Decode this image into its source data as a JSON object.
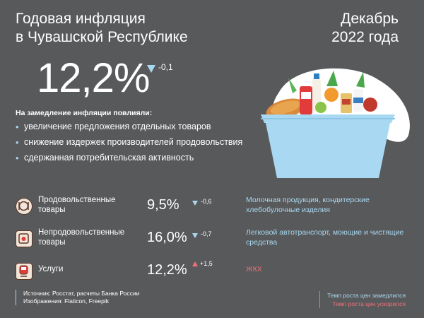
{
  "header": {
    "title_line1": "Годовая инфляция",
    "title_line2": "в Чувашской Республике",
    "date_line1": "Декабрь",
    "date_line2": "2022 года"
  },
  "headline": {
    "value": "12,2%",
    "delta": "-0,1"
  },
  "factors": {
    "heading": "На замедление инфляции повлияли:",
    "items": [
      "увеличение предложения отдельных товаров",
      "снижение издержек производителей продовольствия",
      "сдержанная потребительская активность"
    ]
  },
  "categories": [
    {
      "icon": "food-plate-icon",
      "label_line1": "Продовольственные",
      "label_line2": "товары",
      "value": "9,5%",
      "delta": "-0,6",
      "direction": "down",
      "note": "Молочная продукция, кондитерские хлебобулочные изделия",
      "note_status": "slowed"
    },
    {
      "icon": "household-goods-icon",
      "label_line1": "Непродовольственные",
      "label_line2": "товары",
      "value": "16,0%",
      "delta": "-0,7",
      "direction": "down",
      "note": "Легковой автотранспорт, моющие и чистящие средства",
      "note_status": "slowed"
    },
    {
      "icon": "train-icon",
      "label_line1": "Услуги",
      "label_line2": "",
      "value": "12,2%",
      "delta": "+1,5",
      "direction": "up",
      "note": "ЖКХ",
      "note_status": "accelerated"
    }
  ],
  "footer": {
    "source_line1": "Источник: Росстат, расчеты Банка России",
    "source_line2": "Изображения: Flaticon, Freepik",
    "legend_slowed": "Темп роста цен замедлился",
    "legend_accelerated": "Темп роста цен ускорился"
  },
  "colors": {
    "background": "#58595b",
    "slowed": "#a8d8f0",
    "accelerated": "#f0707a"
  }
}
